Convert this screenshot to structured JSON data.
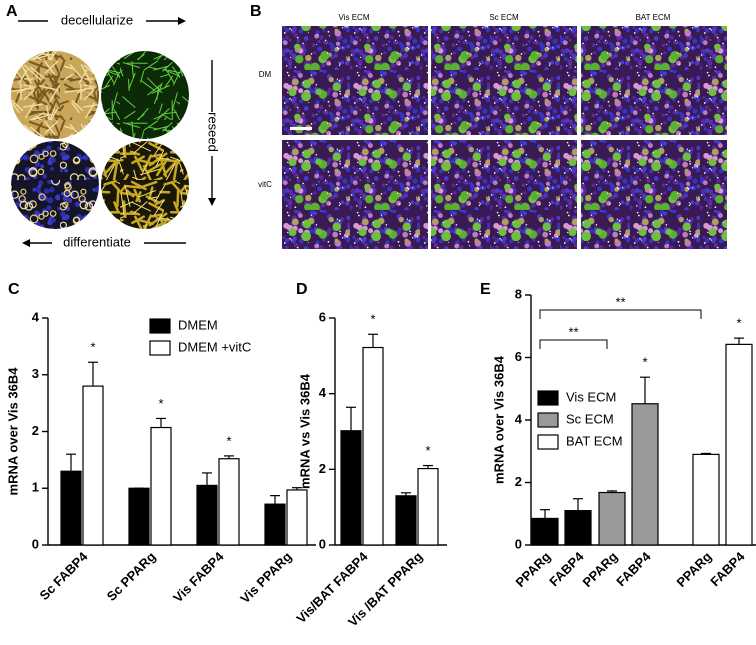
{
  "panel_a": {
    "letter": "A",
    "top_label": "decellularize",
    "side_label": "reseed",
    "bottom_label": "differentiate"
  },
  "panel_b": {
    "letter": "B",
    "columns": [
      "Vis ECM",
      "Sc ECM",
      "BAT ECM"
    ],
    "rows": [
      "DM",
      "vitC"
    ]
  },
  "chart_data": [
    {
      "type": "bar",
      "letter": "C",
      "ylabel": "mRNA over  Vis 36B4",
      "categories": [
        "Sc FABP4",
        "Sc PPARg",
        "Vis FABP4",
        "Vis PPARg"
      ],
      "series": [
        {
          "name": "DMEM",
          "color": "#000000",
          "values": [
            1.3,
            1.0,
            1.05,
            0.72
          ],
          "errors": [
            0.3,
            0,
            0.22,
            0.15
          ]
        },
        {
          "name": "DMEM +vitC",
          "color": "#ffffff",
          "values": [
            2.8,
            2.07,
            1.52,
            0.97
          ],
          "errors": [
            0.42,
            0.16,
            0.05,
            0.04
          ],
          "significance": [
            "*",
            "*",
            "*",
            null
          ]
        }
      ],
      "ylim": [
        0,
        4
      ],
      "yticks": [
        0,
        1,
        2,
        3,
        4
      ]
    },
    {
      "type": "bar",
      "letter": "D",
      "ylabel": "mRNA vs Vis 36B4",
      "categories": [
        "Vis/BAT FABP4",
        "Vis /BAT PPARg"
      ],
      "series": [
        {
          "color": "#000000",
          "values": [
            3.02,
            1.3
          ],
          "errors": [
            0.62,
            0.08
          ]
        },
        {
          "color": "#ffffff",
          "values": [
            5.22,
            2.02
          ],
          "errors": [
            0.35,
            0.08
          ],
          "significance": [
            "*",
            "*"
          ]
        }
      ],
      "ylim": [
        0,
        6
      ],
      "yticks": [
        0,
        2,
        4,
        6
      ]
    },
    {
      "type": "bar",
      "letter": "E",
      "ylabel": "mRNA over Vis 36B4",
      "categories": [
        "PPARg",
        "FABP4",
        "PPARg",
        "FABP4",
        "PPARg",
        "FABP4"
      ],
      "series": [
        {
          "name": "Vis ECM",
          "color": "#000000",
          "values": [
            0.85,
            1.1,
            null,
            null,
            null,
            null
          ],
          "errors": [
            0.28,
            0.38,
            null,
            null,
            null,
            null
          ]
        },
        {
          "name": "Sc ECM",
          "color": "#999999",
          "values": [
            null,
            null,
            1.68,
            4.52,
            null,
            null
          ],
          "errors": [
            null,
            null,
            0.05,
            0.85,
            null,
            null
          ],
          "significance": [
            null,
            null,
            null,
            "*",
            null,
            null
          ]
        },
        {
          "name": "BAT ECM",
          "color": "#ffffff",
          "values": [
            null,
            null,
            null,
            null,
            2.9,
            6.42
          ],
          "errors": [
            null,
            null,
            null,
            null,
            0.03,
            0.2
          ],
          "significance": [
            null,
            null,
            null,
            null,
            null,
            "*"
          ]
        }
      ],
      "brackets": [
        {
          "from": 0,
          "to": 2,
          "label": "**"
        },
        {
          "from": 0,
          "to": 4,
          "label": "**"
        }
      ],
      "ylim": [
        0,
        8
      ],
      "yticks": [
        0,
        2,
        4,
        6,
        8
      ]
    }
  ]
}
